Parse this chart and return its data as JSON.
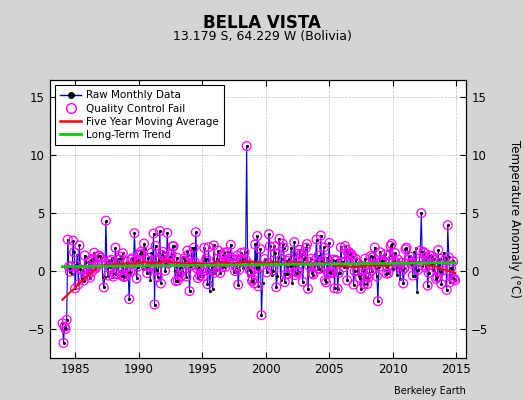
{
  "title": "BELLA VISTA",
  "subtitle": "13.179 S, 64.229 W (Bolivia)",
  "ylabel": "Temperature Anomaly (°C)",
  "credit": "Berkeley Earth",
  "xlim": [
    1983.0,
    2015.8
  ],
  "ylim": [
    -7.5,
    16.5
  ],
  "yticks": [
    -5,
    0,
    5,
    10,
    15
  ],
  "xticks": [
    1985,
    1990,
    1995,
    2000,
    2005,
    2010,
    2015
  ],
  "bg_color": "#d4d4d4",
  "plot_bg_color": "#ffffff",
  "raw_color": "#0000cc",
  "qc_color": "#ff00ff",
  "moving_avg_color": "#ff0000",
  "trend_color": "#00cc00",
  "seed": 17
}
